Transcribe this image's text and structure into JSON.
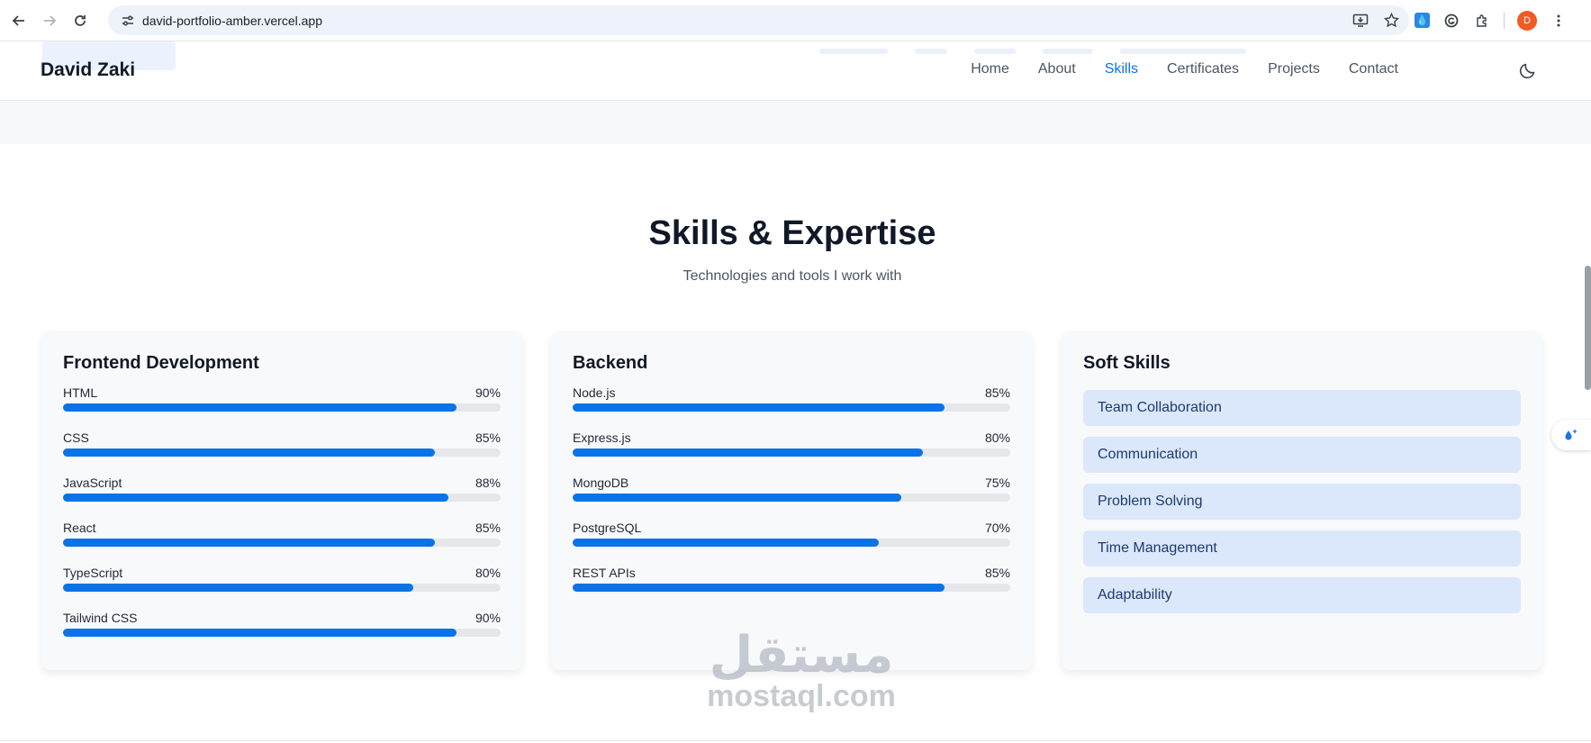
{
  "browser": {
    "url": "david-portfolio-amber.vercel.app",
    "profile_initial": "D"
  },
  "header": {
    "logo": "David Zaki",
    "nav": [
      {
        "label": "Home",
        "active": false
      },
      {
        "label": "About",
        "active": false
      },
      {
        "label": "Skills",
        "active": true
      },
      {
        "label": "Certificates",
        "active": false
      },
      {
        "label": "Projects",
        "active": false
      },
      {
        "label": "Contact",
        "active": false
      }
    ]
  },
  "section": {
    "title": "Skills & Expertise",
    "subtitle": "Technologies and tools I work with"
  },
  "cards": {
    "frontend": {
      "title": "Frontend Development",
      "skills": [
        {
          "name": "HTML",
          "percent": "90%",
          "level": 0.9
        },
        {
          "name": "CSS",
          "percent": "85%",
          "level": 0.85
        },
        {
          "name": "JavaScript",
          "percent": "88%",
          "level": 0.88
        },
        {
          "name": "React",
          "percent": "85%",
          "level": 0.85
        },
        {
          "name": "TypeScript",
          "percent": "80%",
          "level": 0.8
        },
        {
          "name": "Tailwind CSS",
          "percent": "90%",
          "level": 0.9
        }
      ]
    },
    "backend": {
      "title": "Backend",
      "skills": [
        {
          "name": "Node.js",
          "percent": "85%",
          "level": 0.85
        },
        {
          "name": "Express.js",
          "percent": "80%",
          "level": 0.8
        },
        {
          "name": "MongoDB",
          "percent": "75%",
          "level": 0.75
        },
        {
          "name": "PostgreSQL",
          "percent": "70%",
          "level": 0.7
        },
        {
          "name": "REST APIs",
          "percent": "85%",
          "level": 0.85
        }
      ]
    },
    "soft": {
      "title": "Soft Skills",
      "items": [
        "Team Collaboration",
        "Communication",
        "Problem Solving",
        "Time Management",
        "Adaptability"
      ]
    }
  },
  "watermark": {
    "arabic": "مستقل",
    "latin": "mostaql.com"
  },
  "colors": {
    "accent": "#0a73e6",
    "pill": "#dbe8fb"
  }
}
